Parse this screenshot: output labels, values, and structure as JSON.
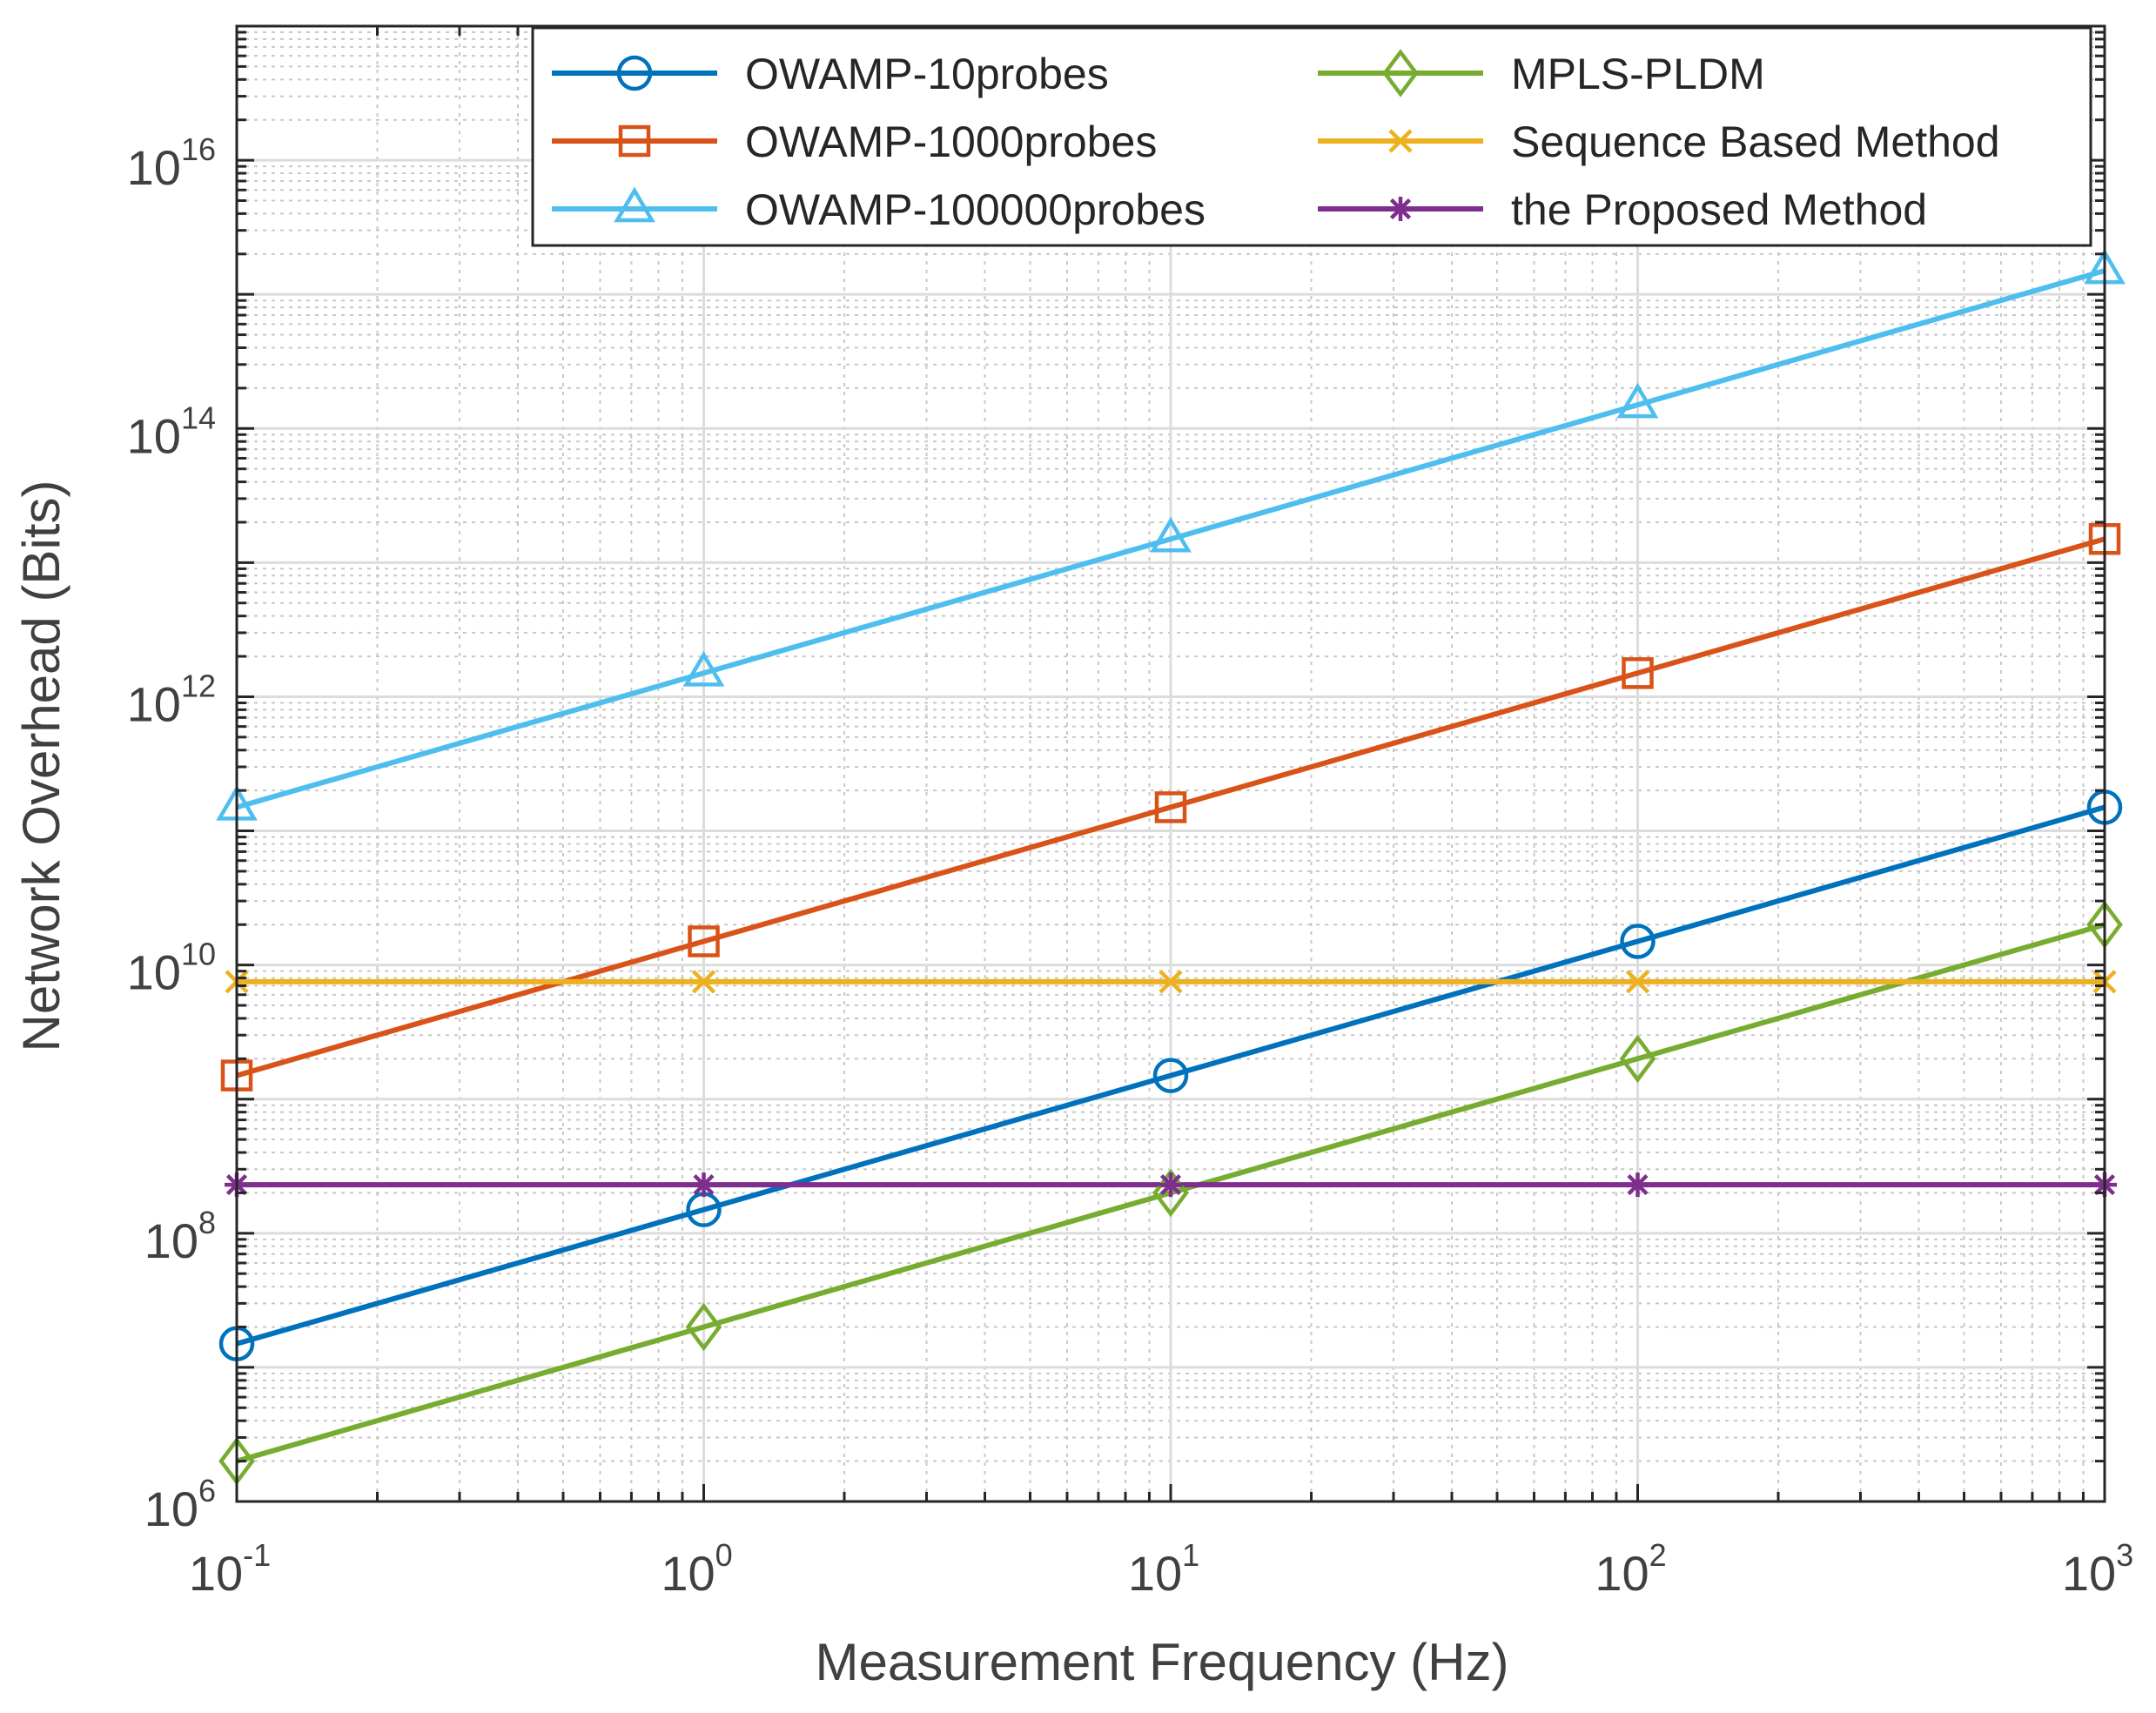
{
  "chart_data": {
    "type": "line",
    "xlabel": "Measurement Frequency (Hz)",
    "ylabel": "Network Overhead (Bits)",
    "x_scale": "log",
    "y_scale": "log",
    "xlim": [
      0.1,
      1000
    ],
    "ylim": [
      1000000,
      1e+17
    ],
    "grid": true,
    "legend_position": "top-right",
    "x_ticks": [
      {
        "base": "10",
        "exp": "-1",
        "value": 0.1
      },
      {
        "base": "10",
        "exp": "0",
        "value": 1
      },
      {
        "base": "10",
        "exp": "1",
        "value": 10
      },
      {
        "base": "10",
        "exp": "2",
        "value": 100
      },
      {
        "base": "10",
        "exp": "3",
        "value": 1000
      }
    ],
    "y_ticks": [
      {
        "base": "10",
        "exp": "6",
        "value": 1000000
      },
      {
        "base": "10",
        "exp": "8",
        "value": 100000000
      },
      {
        "base": "10",
        "exp": "10",
        "value": 10000000000
      },
      {
        "base": "10",
        "exp": "12",
        "value": 1000000000000
      },
      {
        "base": "10",
        "exp": "14",
        "value": 100000000000000
      },
      {
        "base": "10",
        "exp": "16",
        "value": 10000000000000000
      }
    ],
    "x": [
      0.1,
      1,
      10,
      100,
      1000
    ],
    "series": [
      {
        "name": "OWAMP-10probes",
        "color": "#0072BD",
        "marker": "circle",
        "values": [
          15000000,
          150000000,
          1500000000,
          15000000000,
          150000000000
        ]
      },
      {
        "name": "OWAMP-1000probes",
        "color": "#D95319",
        "marker": "square",
        "values": [
          1500000000,
          15000000000,
          150000000000,
          1500000000000,
          15000000000000
        ]
      },
      {
        "name": "OWAMP-100000probes",
        "color": "#4DBEEE",
        "marker": "triangle",
        "values": [
          150000000000,
          1500000000000,
          15000000000000,
          150000000000000,
          1500000000000000
        ]
      },
      {
        "name": "MPLS-PLDM",
        "color": "#77AC30",
        "marker": "diamond",
        "values": [
          2000000,
          20000000,
          200000000,
          2000000000,
          20000000000
        ]
      },
      {
        "name": "Sequence Based Method",
        "color": "#EDB120",
        "marker": "x",
        "values": [
          7500000000,
          7500000000,
          7500000000,
          7500000000,
          7500000000
        ]
      },
      {
        "name": "the Proposed Method",
        "color": "#7E2F8E",
        "marker": "star",
        "values": [
          230000000,
          230000000,
          230000000,
          230000000,
          230000000
        ]
      }
    ]
  }
}
